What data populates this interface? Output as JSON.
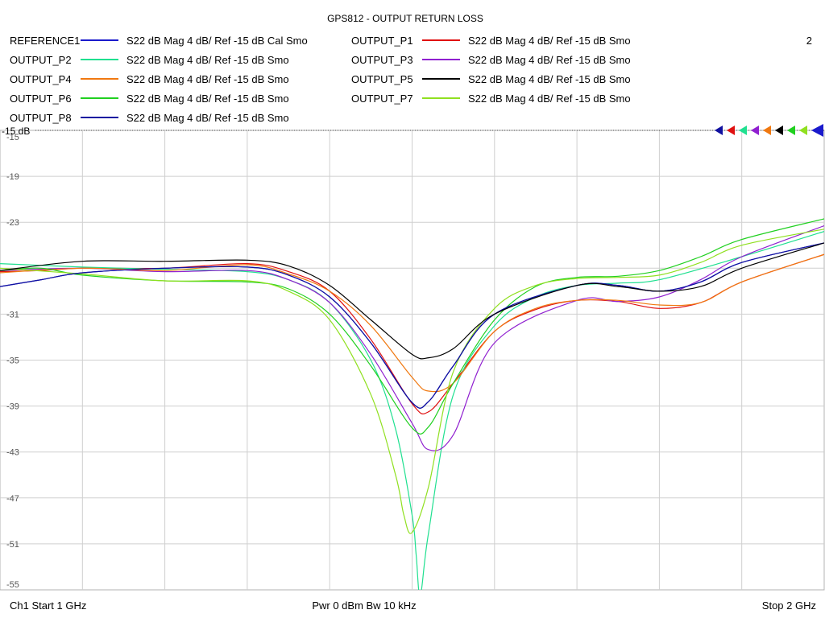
{
  "chart_data": {
    "type": "line",
    "title": "GPS812 - OUTPUT RETURN LOSS",
    "window_number": "2",
    "reference_label": "-15 dB",
    "x_unit": "GHz",
    "xlim": [
      1.0,
      2.0
    ],
    "ylim": [
      -55,
      -15
    ],
    "y_ticks": [
      -15,
      -19,
      -23,
      -27,
      -31,
      -35,
      -39,
      -43,
      -47,
      -51,
      -55
    ],
    "y_tick_labels": [
      "-15",
      "-19",
      "-23",
      "",
      "-31",
      "-35",
      "-39",
      "-43",
      "-47",
      "-51",
      "-55"
    ],
    "x_divisions": 10,
    "grid": true,
    "footer": {
      "left": "Ch1  Start  1 GHz",
      "center": "Pwr  0 dBm  Bw  10 kHz",
      "right": "Stop  2 GHz"
    },
    "series": [
      {
        "name": "REFERENCE1",
        "desc": "S22  dB Mag  4 dB/ Ref -15 dB  Cal Smo",
        "color": "#1a1acc",
        "x": [
          1.0,
          1.05,
          1.1,
          1.2,
          1.3,
          1.35,
          1.4,
          1.45,
          1.5,
          1.52,
          1.55,
          1.6,
          1.7,
          1.75,
          1.8,
          1.85,
          1.9,
          2.0
        ],
        "y": [
          -28.6,
          -28.0,
          -27.4,
          -27.0,
          -26.9,
          -27.6,
          -29.5,
          -33.5,
          -38.7,
          -38.6,
          -35.5,
          -31.0,
          -28.5,
          -28.5,
          -29.0,
          -28.2,
          -26.5,
          -24.8
        ]
      },
      {
        "name": "OUTPUT_P1",
        "desc": "S22  dB Mag  4 dB/ Ref -15 dB  Smo",
        "color": "#e01010",
        "x": [
          1.0,
          1.05,
          1.1,
          1.2,
          1.3,
          1.35,
          1.4,
          1.45,
          1.5,
          1.52,
          1.55,
          1.6,
          1.65,
          1.7,
          1.75,
          1.8,
          1.85,
          1.9,
          2.0
        ],
        "y": [
          -27.3,
          -27.2,
          -27.0,
          -27.0,
          -26.6,
          -27.3,
          -29.0,
          -33.2,
          -38.8,
          -39.5,
          -37.0,
          -32.5,
          -30.6,
          -29.8,
          -29.9,
          -30.5,
          -30.0,
          -28.2,
          -25.8
        ]
      },
      {
        "name": "OUTPUT_P2",
        "desc": "S22  dB Mag  4 dB/ Ref -15 dB  Smo",
        "color": "#20e090",
        "x": [
          1.0,
          1.1,
          1.2,
          1.3,
          1.35,
          1.4,
          1.45,
          1.48,
          1.5,
          1.505,
          1.51,
          1.52,
          1.55,
          1.6,
          1.65,
          1.7,
          1.75,
          1.8,
          1.9,
          2.0
        ],
        "y": [
          -26.6,
          -26.9,
          -27.1,
          -27.3,
          -28.0,
          -30.0,
          -35.0,
          -41.0,
          -48.5,
          -52.0,
          -55.5,
          -50.0,
          -38.0,
          -32.0,
          -29.5,
          -28.5,
          -28.3,
          -28.0,
          -26.0,
          -23.8
        ]
      },
      {
        "name": "OUTPUT_P3",
        "desc": "S22  dB Mag  4 dB/ Ref -15 dB  Smo",
        "color": "#9020d0",
        "x": [
          1.0,
          1.1,
          1.2,
          1.3,
          1.35,
          1.4,
          1.45,
          1.5,
          1.52,
          1.55,
          1.6,
          1.7,
          1.75,
          1.8,
          1.85,
          1.9,
          2.0
        ],
        "y": [
          -27.2,
          -27.0,
          -27.3,
          -27.2,
          -28.0,
          -30.0,
          -34.5,
          -40.5,
          -42.8,
          -41.5,
          -33.5,
          -29.8,
          -29.9,
          -29.5,
          -28.0,
          -26.0,
          -23.3
        ]
      },
      {
        "name": "OUTPUT_P4",
        "desc": "S22  dB Mag  4 dB/ Ref -15 dB  Smo",
        "color": "#f07810",
        "x": [
          1.0,
          1.1,
          1.2,
          1.3,
          1.35,
          1.4,
          1.45,
          1.5,
          1.52,
          1.55,
          1.6,
          1.65,
          1.7,
          1.75,
          1.8,
          1.85,
          1.9,
          2.0
        ],
        "y": [
          -27.4,
          -27.0,
          -27.2,
          -26.7,
          -27.5,
          -29.0,
          -32.0,
          -36.5,
          -37.7,
          -37.0,
          -32.5,
          -30.5,
          -29.8,
          -29.8,
          -30.2,
          -30.0,
          -28.2,
          -25.8
        ]
      },
      {
        "name": "OUTPUT_P5",
        "desc": "S22  dB Mag  4 dB/ Ref -15 dB  Smo",
        "color": "#000000",
        "x": [
          1.0,
          1.1,
          1.2,
          1.3,
          1.35,
          1.4,
          1.45,
          1.5,
          1.52,
          1.55,
          1.6,
          1.7,
          1.75,
          1.8,
          1.85,
          1.9,
          2.0
        ],
        "y": [
          -27.2,
          -26.4,
          -26.4,
          -26.3,
          -26.8,
          -28.5,
          -31.5,
          -34.5,
          -34.8,
          -34.0,
          -31.0,
          -28.5,
          -28.6,
          -29.0,
          -28.6,
          -27.0,
          -24.8
        ]
      },
      {
        "name": "OUTPUT_P6",
        "desc": "S22  dB Mag  4 dB/ Ref -15 dB  Smo",
        "color": "#20d020",
        "x": [
          1.0,
          1.05,
          1.1,
          1.2,
          1.3,
          1.35,
          1.4,
          1.45,
          1.5,
          1.52,
          1.55,
          1.6,
          1.65,
          1.7,
          1.75,
          1.8,
          1.85,
          1.9,
          2.0
        ],
        "y": [
          -27.2,
          -27.0,
          -27.6,
          -28.1,
          -28.2,
          -28.8,
          -31.0,
          -35.5,
          -40.9,
          -40.8,
          -37.0,
          -31.5,
          -28.6,
          -27.8,
          -27.7,
          -27.2,
          -26.0,
          -24.5,
          -22.7
        ]
      },
      {
        "name": "OUTPUT_P7",
        "desc": "S22  dB Mag  4 dB/ Ref -15 dB  Smo",
        "color": "#90e020",
        "x": [
          1.0,
          1.1,
          1.2,
          1.3,
          1.35,
          1.4,
          1.45,
          1.48,
          1.49,
          1.5,
          1.52,
          1.55,
          1.6,
          1.65,
          1.7,
          1.75,
          1.8,
          1.85,
          1.9,
          2.0
        ],
        "y": [
          -27.0,
          -27.5,
          -28.1,
          -28.1,
          -29.0,
          -31.5,
          -38.0,
          -45.0,
          -48.5,
          -50.0,
          -46.0,
          -36.0,
          -30.5,
          -28.5,
          -27.9,
          -27.8,
          -27.6,
          -26.5,
          -25.0,
          -23.6
        ]
      },
      {
        "name": "OUTPUT_P8",
        "desc": "S22  dB Mag  4 dB/ Ref -15 dB  Smo",
        "color": "#1010a0",
        "x": [
          1.0,
          1.05,
          1.1,
          1.2,
          1.3,
          1.35,
          1.4,
          1.45,
          1.5,
          1.52,
          1.55,
          1.6,
          1.7,
          1.75,
          1.8,
          1.85,
          1.9,
          2.0
        ],
        "y": [
          -28.6,
          -28.0,
          -27.4,
          -27.0,
          -26.9,
          -27.6,
          -29.5,
          -33.5,
          -38.7,
          -38.6,
          -35.5,
          -31.0,
          -28.5,
          -28.5,
          -29.0,
          -28.2,
          -26.5,
          -24.8
        ]
      }
    ]
  }
}
